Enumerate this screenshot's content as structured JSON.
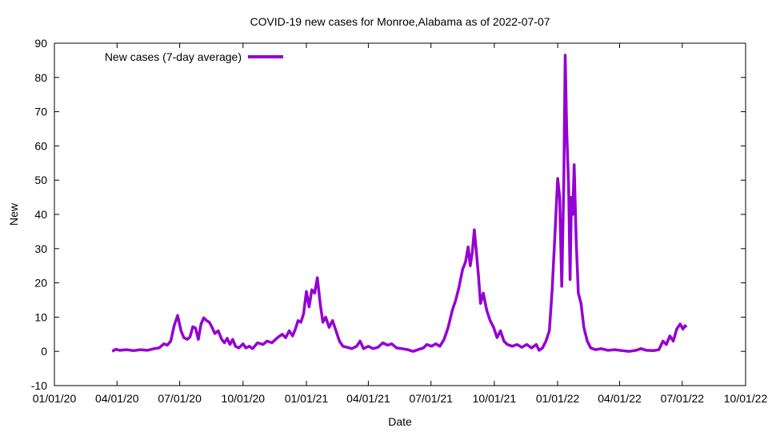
{
  "chart_data": {
    "type": "line",
    "title": "COVID-19 new cases for Monroe,Alabama as of 2022-07-07",
    "xlabel": "Date",
    "ylabel": "New",
    "ylim": [
      -10,
      90
    ],
    "yticks": [
      -10,
      0,
      10,
      20,
      30,
      40,
      50,
      60,
      70,
      80,
      90
    ],
    "xlim": [
      "2020-01-01",
      "2022-10-01"
    ],
    "xticks": [
      {
        "date": "2020-01-01",
        "label": "01/01/20"
      },
      {
        "date": "2020-04-01",
        "label": "04/01/20"
      },
      {
        "date": "2020-07-01",
        "label": "07/01/20"
      },
      {
        "date": "2020-10-01",
        "label": "10/01/20"
      },
      {
        "date": "2021-01-01",
        "label": "01/01/21"
      },
      {
        "date": "2021-04-01",
        "label": "04/01/21"
      },
      {
        "date": "2021-07-01",
        "label": "07/01/21"
      },
      {
        "date": "2021-10-01",
        "label": "10/01/21"
      },
      {
        "date": "2022-01-01",
        "label": "01/01/22"
      },
      {
        "date": "2022-04-01",
        "label": "04/01/22"
      },
      {
        "date": "2022-07-01",
        "label": "07/01/22"
      },
      {
        "date": "2022-10-01",
        "label": "10/01/22"
      }
    ],
    "grid": false,
    "legend_position": "top-left",
    "series": [
      {
        "name": "New cases (7-day average)",
        "color": "#9400d3",
        "points": [
          [
            "2020-03-25",
            0.0
          ],
          [
            "2020-03-30",
            0.6
          ],
          [
            "2020-04-05",
            0.3
          ],
          [
            "2020-04-15",
            0.5
          ],
          [
            "2020-04-25",
            0.2
          ],
          [
            "2020-05-05",
            0.5
          ],
          [
            "2020-05-15",
            0.3
          ],
          [
            "2020-05-25",
            0.8
          ],
          [
            "2020-06-01",
            1.0
          ],
          [
            "2020-06-08",
            2.2
          ],
          [
            "2020-06-13",
            1.8
          ],
          [
            "2020-06-18",
            3.0
          ],
          [
            "2020-06-23",
            7.5
          ],
          [
            "2020-06-28",
            10.5
          ],
          [
            "2020-07-03",
            6.0
          ],
          [
            "2020-07-07",
            4.0
          ],
          [
            "2020-07-12",
            3.5
          ],
          [
            "2020-07-16",
            4.2
          ],
          [
            "2020-07-20",
            7.2
          ],
          [
            "2020-07-24",
            6.8
          ],
          [
            "2020-07-28",
            3.5
          ],
          [
            "2020-08-01",
            8.0
          ],
          [
            "2020-08-05",
            9.8
          ],
          [
            "2020-08-09",
            9.0
          ],
          [
            "2020-08-13",
            8.5
          ],
          [
            "2020-08-17",
            7.0
          ],
          [
            "2020-08-21",
            5.2
          ],
          [
            "2020-08-26",
            6.0
          ],
          [
            "2020-08-31",
            3.5
          ],
          [
            "2020-09-04",
            2.5
          ],
          [
            "2020-09-08",
            3.8
          ],
          [
            "2020-09-12",
            2.0
          ],
          [
            "2020-09-16",
            3.5
          ],
          [
            "2020-09-20",
            1.5
          ],
          [
            "2020-09-25",
            1.0
          ],
          [
            "2020-10-01",
            2.2
          ],
          [
            "2020-10-05",
            1.0
          ],
          [
            "2020-10-10",
            1.5
          ],
          [
            "2020-10-15",
            0.8
          ],
          [
            "2020-10-22",
            2.5
          ],
          [
            "2020-10-30",
            2.0
          ],
          [
            "2020-11-05",
            3.0
          ],
          [
            "2020-11-12",
            2.5
          ],
          [
            "2020-11-20",
            4.0
          ],
          [
            "2020-11-27",
            5.0
          ],
          [
            "2020-12-02",
            4.0
          ],
          [
            "2020-12-07",
            6.0
          ],
          [
            "2020-12-12",
            4.5
          ],
          [
            "2020-12-16",
            6.5
          ],
          [
            "2020-12-20",
            9.0
          ],
          [
            "2020-12-24",
            8.5
          ],
          [
            "2020-12-28",
            11.0
          ],
          [
            "2021-01-01",
            17.5
          ],
          [
            "2021-01-05",
            13.0
          ],
          [
            "2021-01-09",
            18.0
          ],
          [
            "2021-01-13",
            17.0
          ],
          [
            "2021-01-17",
            21.5
          ],
          [
            "2021-01-21",
            14.0
          ],
          [
            "2021-01-25",
            8.5
          ],
          [
            "2021-01-29",
            10.0
          ],
          [
            "2021-02-03",
            7.0
          ],
          [
            "2021-02-08",
            9.0
          ],
          [
            "2021-02-13",
            6.0
          ],
          [
            "2021-02-18",
            3.0
          ],
          [
            "2021-02-23",
            1.5
          ],
          [
            "2021-03-01",
            1.2
          ],
          [
            "2021-03-08",
            0.8
          ],
          [
            "2021-03-15",
            1.5
          ],
          [
            "2021-03-20",
            3.0
          ],
          [
            "2021-03-25",
            0.8
          ],
          [
            "2021-04-01",
            1.5
          ],
          [
            "2021-04-08",
            0.8
          ],
          [
            "2021-04-15",
            1.2
          ],
          [
            "2021-04-22",
            2.5
          ],
          [
            "2021-04-29",
            1.8
          ],
          [
            "2021-05-05",
            2.2
          ],
          [
            "2021-05-12",
            1.0
          ],
          [
            "2021-05-20",
            0.8
          ],
          [
            "2021-05-28",
            0.5
          ],
          [
            "2021-06-05",
            0.0
          ],
          [
            "2021-06-12",
            0.5
          ],
          [
            "2021-06-20",
            1.0
          ],
          [
            "2021-06-25",
            2.0
          ],
          [
            "2021-07-02",
            1.5
          ],
          [
            "2021-07-08",
            2.2
          ],
          [
            "2021-07-14",
            1.5
          ],
          [
            "2021-07-20",
            3.5
          ],
          [
            "2021-07-26",
            7.0
          ],
          [
            "2021-08-01",
            12.0
          ],
          [
            "2021-08-06",
            15.0
          ],
          [
            "2021-08-11",
            19.0
          ],
          [
            "2021-08-16",
            24.0
          ],
          [
            "2021-08-20",
            26.0
          ],
          [
            "2021-08-24",
            30.5
          ],
          [
            "2021-08-27",
            25.0
          ],
          [
            "2021-08-30",
            29.0
          ],
          [
            "2021-09-02",
            35.5
          ],
          [
            "2021-09-05",
            29.0
          ],
          [
            "2021-09-08",
            22.0
          ],
          [
            "2021-09-11",
            14.0
          ],
          [
            "2021-09-15",
            17.0
          ],
          [
            "2021-09-20",
            12.0
          ],
          [
            "2021-09-25",
            9.0
          ],
          [
            "2021-09-30",
            7.0
          ],
          [
            "2021-10-05",
            4.0
          ],
          [
            "2021-10-10",
            6.0
          ],
          [
            "2021-10-15",
            3.0
          ],
          [
            "2021-10-20",
            2.0
          ],
          [
            "2021-10-27",
            1.5
          ],
          [
            "2021-11-03",
            2.0
          ],
          [
            "2021-11-10",
            1.2
          ],
          [
            "2021-11-17",
            2.0
          ],
          [
            "2021-11-24",
            1.0
          ],
          [
            "2021-12-01",
            2.0
          ],
          [
            "2021-12-05",
            0.3
          ],
          [
            "2021-12-10",
            1.0
          ],
          [
            "2021-12-15",
            3.0
          ],
          [
            "2021-12-20",
            6.0
          ],
          [
            "2021-12-24",
            18.0
          ],
          [
            "2021-12-27",
            30.0
          ],
          [
            "2021-12-30",
            42.0
          ],
          [
            "2022-01-01",
            50.5
          ],
          [
            "2022-01-04",
            45.0
          ],
          [
            "2022-01-07",
            19.0
          ],
          [
            "2022-01-10",
            50.0
          ],
          [
            "2022-01-12",
            86.5
          ],
          [
            "2022-01-14",
            65.0
          ],
          [
            "2022-01-17",
            48.0
          ],
          [
            "2022-01-19",
            21.0
          ],
          [
            "2022-01-21",
            45.0
          ],
          [
            "2022-01-23",
            40.0
          ],
          [
            "2022-01-25",
            54.5
          ],
          [
            "2022-01-28",
            32.0
          ],
          [
            "2022-01-31",
            17.0
          ],
          [
            "2022-02-04",
            14.0
          ],
          [
            "2022-02-08",
            7.0
          ],
          [
            "2022-02-13",
            3.0
          ],
          [
            "2022-02-18",
            1.0
          ],
          [
            "2022-02-25",
            0.5
          ],
          [
            "2022-03-05",
            0.8
          ],
          [
            "2022-03-15",
            0.3
          ],
          [
            "2022-03-25",
            0.5
          ],
          [
            "2022-04-05",
            0.2
          ],
          [
            "2022-04-15",
            0.0
          ],
          [
            "2022-04-25",
            0.3
          ],
          [
            "2022-05-02",
            0.8
          ],
          [
            "2022-05-10",
            0.3
          ],
          [
            "2022-05-20",
            0.2
          ],
          [
            "2022-05-28",
            0.5
          ],
          [
            "2022-06-03",
            3.0
          ],
          [
            "2022-06-08",
            2.0
          ],
          [
            "2022-06-13",
            4.5
          ],
          [
            "2022-06-18",
            3.0
          ],
          [
            "2022-06-23",
            6.5
          ],
          [
            "2022-06-28",
            8.0
          ],
          [
            "2022-07-02",
            6.5
          ],
          [
            "2022-07-05",
            7.5
          ],
          [
            "2022-07-07",
            7.0
          ]
        ]
      }
    ]
  }
}
